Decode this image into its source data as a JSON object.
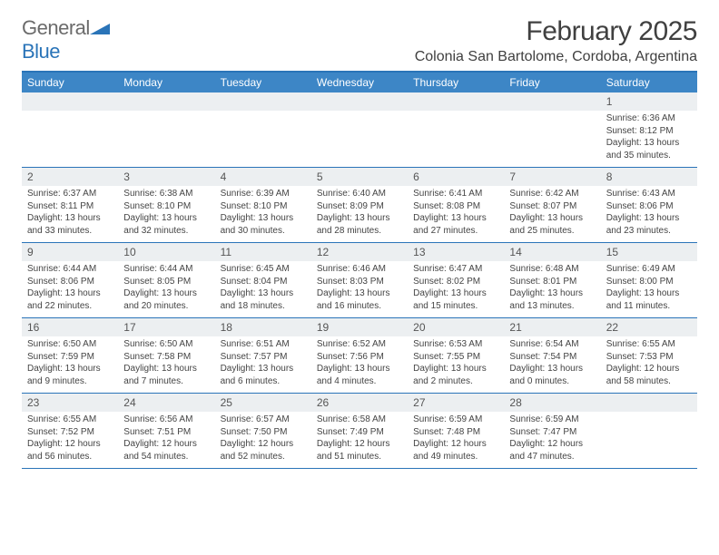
{
  "logo": {
    "word1": "General",
    "word2": "Blue"
  },
  "title": "February 2025",
  "location": "Colonia San Bartolome, Cordoba, Argentina",
  "colors": {
    "header_bg": "#3d86c6",
    "accent": "#2a74b8",
    "daynum_bg": "#eceff1",
    "text": "#404040"
  },
  "weekdays": [
    "Sunday",
    "Monday",
    "Tuesday",
    "Wednesday",
    "Thursday",
    "Friday",
    "Saturday"
  ],
  "weeks": [
    [
      null,
      null,
      null,
      null,
      null,
      null,
      {
        "n": "1",
        "sr": "Sunrise: 6:36 AM",
        "ss": "Sunset: 8:12 PM",
        "dl": "Daylight: 13 hours and 35 minutes."
      }
    ],
    [
      {
        "n": "2",
        "sr": "Sunrise: 6:37 AM",
        "ss": "Sunset: 8:11 PM",
        "dl": "Daylight: 13 hours and 33 minutes."
      },
      {
        "n": "3",
        "sr": "Sunrise: 6:38 AM",
        "ss": "Sunset: 8:10 PM",
        "dl": "Daylight: 13 hours and 32 minutes."
      },
      {
        "n": "4",
        "sr": "Sunrise: 6:39 AM",
        "ss": "Sunset: 8:10 PM",
        "dl": "Daylight: 13 hours and 30 minutes."
      },
      {
        "n": "5",
        "sr": "Sunrise: 6:40 AM",
        "ss": "Sunset: 8:09 PM",
        "dl": "Daylight: 13 hours and 28 minutes."
      },
      {
        "n": "6",
        "sr": "Sunrise: 6:41 AM",
        "ss": "Sunset: 8:08 PM",
        "dl": "Daylight: 13 hours and 27 minutes."
      },
      {
        "n": "7",
        "sr": "Sunrise: 6:42 AM",
        "ss": "Sunset: 8:07 PM",
        "dl": "Daylight: 13 hours and 25 minutes."
      },
      {
        "n": "8",
        "sr": "Sunrise: 6:43 AM",
        "ss": "Sunset: 8:06 PM",
        "dl": "Daylight: 13 hours and 23 minutes."
      }
    ],
    [
      {
        "n": "9",
        "sr": "Sunrise: 6:44 AM",
        "ss": "Sunset: 8:06 PM",
        "dl": "Daylight: 13 hours and 22 minutes."
      },
      {
        "n": "10",
        "sr": "Sunrise: 6:44 AM",
        "ss": "Sunset: 8:05 PM",
        "dl": "Daylight: 13 hours and 20 minutes."
      },
      {
        "n": "11",
        "sr": "Sunrise: 6:45 AM",
        "ss": "Sunset: 8:04 PM",
        "dl": "Daylight: 13 hours and 18 minutes."
      },
      {
        "n": "12",
        "sr": "Sunrise: 6:46 AM",
        "ss": "Sunset: 8:03 PM",
        "dl": "Daylight: 13 hours and 16 minutes."
      },
      {
        "n": "13",
        "sr": "Sunrise: 6:47 AM",
        "ss": "Sunset: 8:02 PM",
        "dl": "Daylight: 13 hours and 15 minutes."
      },
      {
        "n": "14",
        "sr": "Sunrise: 6:48 AM",
        "ss": "Sunset: 8:01 PM",
        "dl": "Daylight: 13 hours and 13 minutes."
      },
      {
        "n": "15",
        "sr": "Sunrise: 6:49 AM",
        "ss": "Sunset: 8:00 PM",
        "dl": "Daylight: 13 hours and 11 minutes."
      }
    ],
    [
      {
        "n": "16",
        "sr": "Sunrise: 6:50 AM",
        "ss": "Sunset: 7:59 PM",
        "dl": "Daylight: 13 hours and 9 minutes."
      },
      {
        "n": "17",
        "sr": "Sunrise: 6:50 AM",
        "ss": "Sunset: 7:58 PM",
        "dl": "Daylight: 13 hours and 7 minutes."
      },
      {
        "n": "18",
        "sr": "Sunrise: 6:51 AM",
        "ss": "Sunset: 7:57 PM",
        "dl": "Daylight: 13 hours and 6 minutes."
      },
      {
        "n": "19",
        "sr": "Sunrise: 6:52 AM",
        "ss": "Sunset: 7:56 PM",
        "dl": "Daylight: 13 hours and 4 minutes."
      },
      {
        "n": "20",
        "sr": "Sunrise: 6:53 AM",
        "ss": "Sunset: 7:55 PM",
        "dl": "Daylight: 13 hours and 2 minutes."
      },
      {
        "n": "21",
        "sr": "Sunrise: 6:54 AM",
        "ss": "Sunset: 7:54 PM",
        "dl": "Daylight: 13 hours and 0 minutes."
      },
      {
        "n": "22",
        "sr": "Sunrise: 6:55 AM",
        "ss": "Sunset: 7:53 PM",
        "dl": "Daylight: 12 hours and 58 minutes."
      }
    ],
    [
      {
        "n": "23",
        "sr": "Sunrise: 6:55 AM",
        "ss": "Sunset: 7:52 PM",
        "dl": "Daylight: 12 hours and 56 minutes."
      },
      {
        "n": "24",
        "sr": "Sunrise: 6:56 AM",
        "ss": "Sunset: 7:51 PM",
        "dl": "Daylight: 12 hours and 54 minutes."
      },
      {
        "n": "25",
        "sr": "Sunrise: 6:57 AM",
        "ss": "Sunset: 7:50 PM",
        "dl": "Daylight: 12 hours and 52 minutes."
      },
      {
        "n": "26",
        "sr": "Sunrise: 6:58 AM",
        "ss": "Sunset: 7:49 PM",
        "dl": "Daylight: 12 hours and 51 minutes."
      },
      {
        "n": "27",
        "sr": "Sunrise: 6:59 AM",
        "ss": "Sunset: 7:48 PM",
        "dl": "Daylight: 12 hours and 49 minutes."
      },
      {
        "n": "28",
        "sr": "Sunrise: 6:59 AM",
        "ss": "Sunset: 7:47 PM",
        "dl": "Daylight: 12 hours and 47 minutes."
      },
      null
    ]
  ]
}
